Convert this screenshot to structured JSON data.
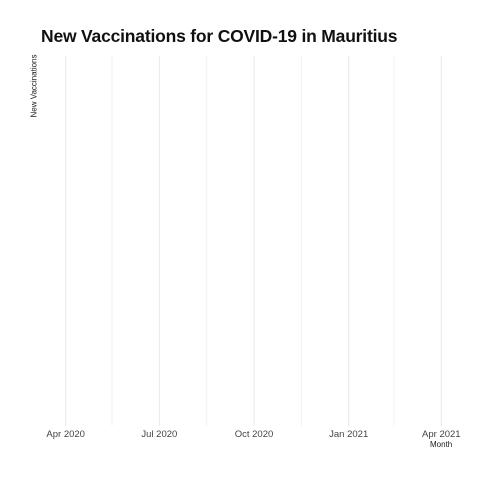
{
  "chart_data": {
    "type": "line",
    "title": "New Vaccinations for COVID-19 in Mauritius",
    "xlabel": "Month",
    "ylabel": "New Vaccinations",
    "x_ticks": [
      {
        "date": "2020-04-01",
        "label": "Apr 2020"
      },
      {
        "date": "2020-07-01",
        "label": "Jul 2020"
      },
      {
        "date": "2020-10-01",
        "label": "Oct 2020"
      },
      {
        "date": "2021-01-01",
        "label": "Jan 2021"
      },
      {
        "date": "2021-04-01",
        "label": "Apr 2021"
      }
    ],
    "x_minor_gridlines": [
      "2020-05-16",
      "2020-08-16",
      "2020-11-16",
      "2021-02-14"
    ],
    "xlim": [
      "2020-03-08",
      "2021-04-25"
    ],
    "series": [],
    "grid": true,
    "legend": "none"
  }
}
